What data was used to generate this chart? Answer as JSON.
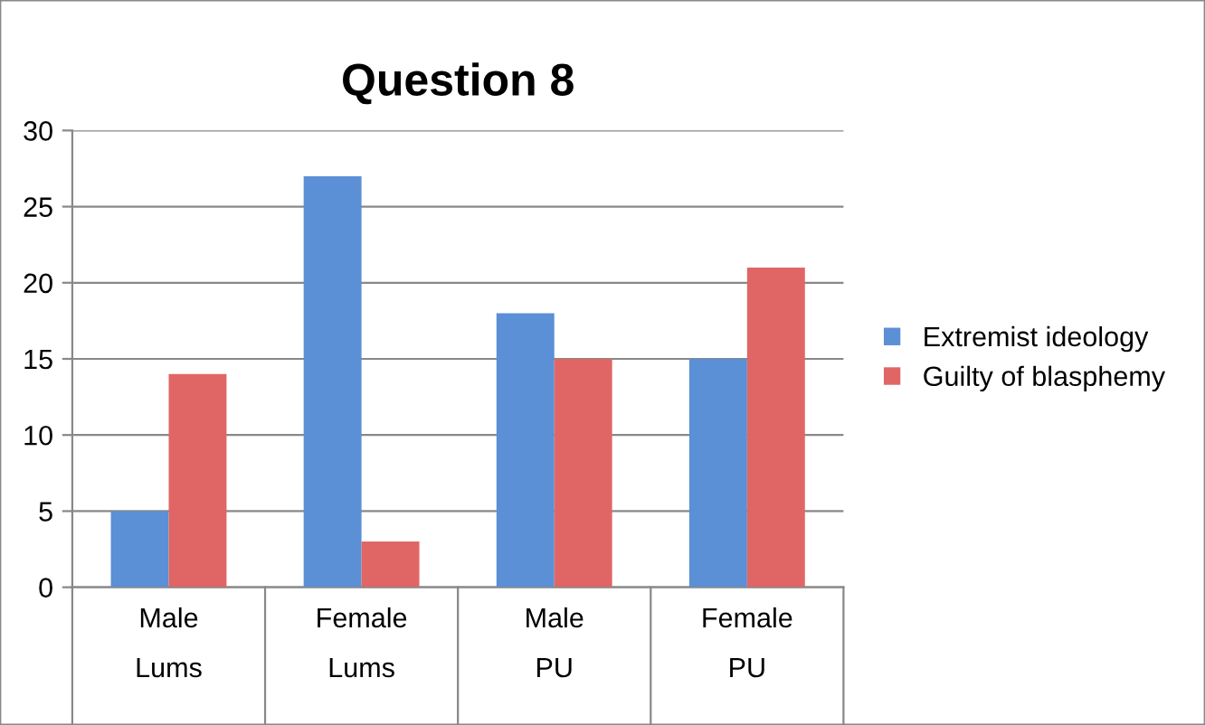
{
  "chart_data": {
    "type": "bar",
    "title": "Question 8",
    "categories": [
      "Male\nLums",
      "Female\nLums",
      "Male\nPU",
      "Female\nPU"
    ],
    "series": [
      {
        "name": "Extremist ideology",
        "color": "#5b8fd6",
        "values": [
          5,
          27,
          18,
          15
        ]
      },
      {
        "name": "Guilty of blasphemy",
        "color": "#e06666",
        "values": [
          14,
          3,
          15,
          21
        ]
      }
    ],
    "ylim": [
      0,
      30
    ],
    "yticks": [
      0,
      5,
      10,
      15,
      20,
      25,
      30
    ],
    "grid": "y",
    "legend": "right"
  }
}
